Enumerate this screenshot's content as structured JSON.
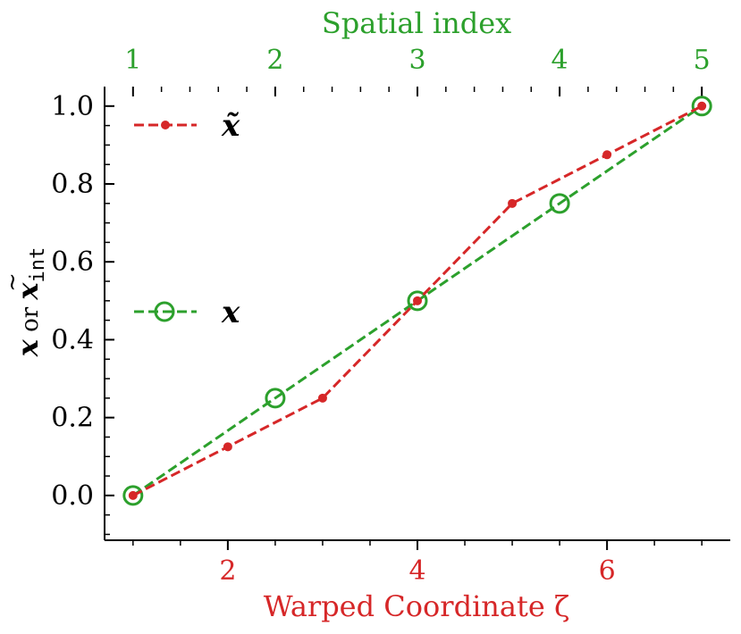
{
  "chart_data": {
    "type": "line",
    "xlabel": "Warped Coordinate ζ",
    "top_xlabel": "Spatial index",
    "ylabel": {
      "var1": "x",
      "connector": " or ",
      "var2": "x",
      "var2_subscript": "int"
    },
    "xlim": [
      0.7,
      7.3
    ],
    "ylim": [
      -0.115,
      1.05
    ],
    "x_ticks": [
      2,
      4,
      6
    ],
    "x_tick_labels": [
      "2",
      "4",
      "6"
    ],
    "y_ticks": [
      0.0,
      0.2,
      0.4,
      0.6,
      0.8,
      1.0
    ],
    "y_tick_labels": [
      "0.0",
      "0.2",
      "0.4",
      "0.6",
      "0.8",
      "1.0"
    ],
    "top_ticks": [
      1,
      2.5,
      4,
      5.5,
      7
    ],
    "top_tick_labels": [
      "1",
      "2",
      "3",
      "4",
      "5"
    ],
    "grid": false,
    "legend_placement": "left",
    "colors": {
      "red": "#d62728",
      "green": "#2ca02c",
      "axis": "#000000"
    },
    "series": [
      {
        "name": "x̃",
        "color": "#d62728",
        "marker": "dot",
        "linestyle": "dashed",
        "x": [
          1,
          2,
          3,
          4,
          5,
          6,
          7
        ],
        "y": [
          0.0,
          0.125,
          0.25,
          0.5,
          0.75,
          0.875,
          1.0
        ]
      },
      {
        "name": "x",
        "color": "#2ca02c",
        "marker": "open-circle",
        "linestyle": "dashed",
        "x": [
          1,
          2.5,
          4,
          5.5,
          7
        ],
        "y": [
          0.0,
          0.25,
          0.5,
          0.75,
          1.0
        ]
      }
    ]
  }
}
